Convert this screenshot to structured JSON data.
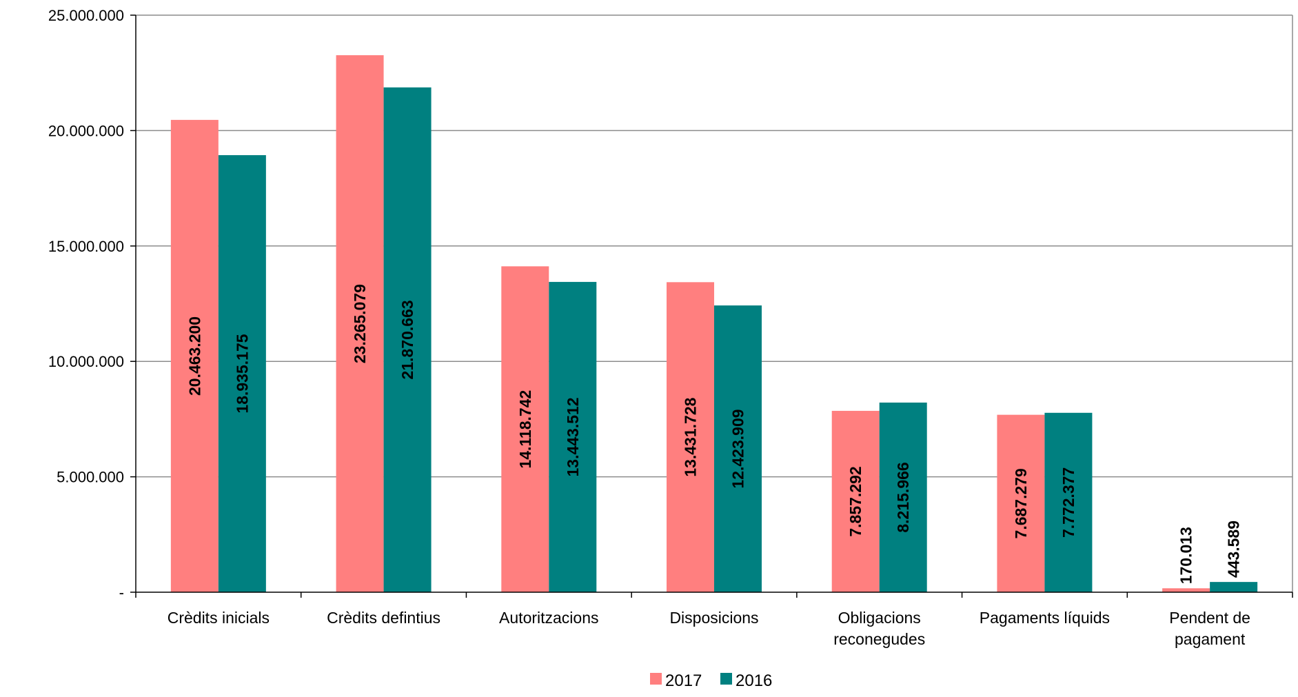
{
  "chart_data": {
    "type": "bar",
    "title": "",
    "xlabel": "",
    "ylabel": "",
    "categories": [
      [
        "Crèdits inicials"
      ],
      [
        "Crèdits defintius"
      ],
      [
        "Autoritzacions"
      ],
      [
        "Disposicions"
      ],
      [
        "Obligacions",
        "reconegudes"
      ],
      [
        "Pagaments líquids"
      ],
      [
        "Pendent de",
        "pagament"
      ]
    ],
    "series": [
      {
        "name": "2017",
        "color": "#FF7F7F",
        "values": [
          20463200,
          23265079,
          14118742,
          13431728,
          7857292,
          7687279,
          170013
        ],
        "labels": [
          "20.463.200",
          "23.265.079",
          "14.118.742",
          "13.431.728",
          "7.857.292",
          "7.687.279",
          "170.013"
        ]
      },
      {
        "name": "2016",
        "color": "#008080",
        "values": [
          18935175,
          21870663,
          13443512,
          12423909,
          8215966,
          7772377,
          443589
        ],
        "labels": [
          "18.935.175",
          "21.870.663",
          "13.443.512",
          "12.423.909",
          "8.215.966",
          "7.772.377",
          "443.589"
        ]
      }
    ],
    "ylim": [
      0,
      25000000
    ],
    "yticks": [
      0,
      5000000,
      10000000,
      15000000,
      20000000,
      25000000
    ],
    "ytick_labels": [
      "-",
      "5.000.000",
      "10.000.000",
      "15.000.000",
      "20.000.000",
      "25.000.000"
    ],
    "grid": true,
    "legend": "bottom-center"
  }
}
